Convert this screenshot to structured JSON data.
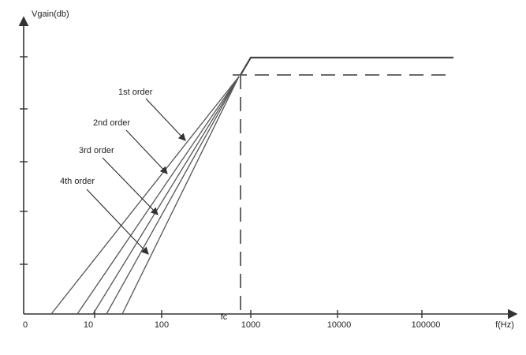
{
  "y_axis_label": "Vgain(db)",
  "x_axis_label": "f(Hz)",
  "x_ticks": [
    "0",
    "10",
    "100",
    "1000",
    "10000",
    "100000"
  ],
  "cutoff_label": "fc",
  "curve_labels": [
    "1st order",
    "2nd order",
    "3rd order",
    "4th order"
  ]
}
